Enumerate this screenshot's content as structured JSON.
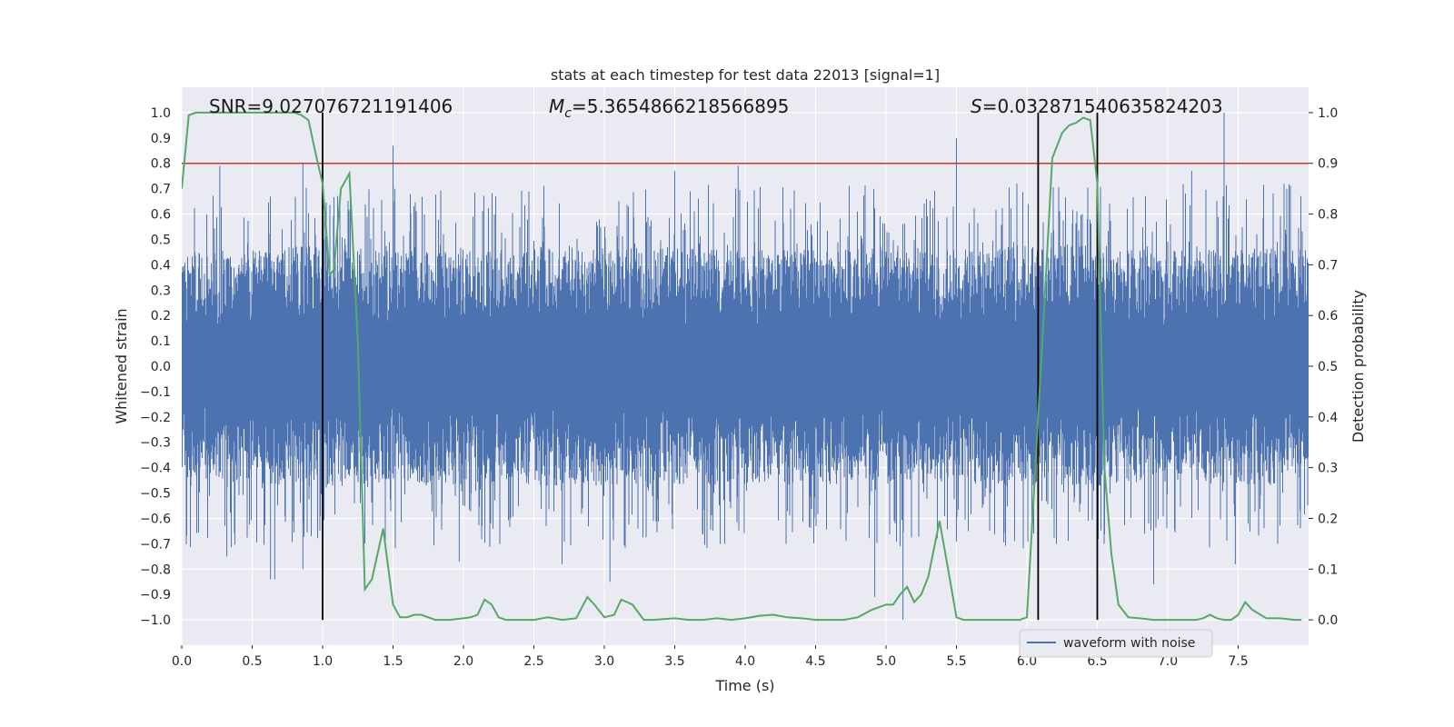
{
  "chart_data": {
    "type": "line",
    "title": "stats at each timestep for test data 22013 [signal=1]",
    "xlabel": "Time (s)",
    "ylabel_left": "Whitened strain",
    "ylabel_right": "Detection probability",
    "xlim": [
      0.0,
      8.0
    ],
    "ylim_left": [
      -1.1,
      1.1
    ],
    "ylim_right": [
      -0.05,
      1.05
    ],
    "grid": true,
    "legend_placement": "lower-right",
    "x_ticks": [
      "0.0",
      "0.5",
      "1.0",
      "1.5",
      "2.0",
      "2.5",
      "3.0",
      "3.5",
      "4.0",
      "4.5",
      "5.0",
      "5.5",
      "6.0",
      "6.5",
      "7.0",
      "7.5"
    ],
    "y_ticks_left": [
      "1.0",
      "0.9",
      "0.8",
      "0.7",
      "0.6",
      "0.5",
      "0.4",
      "0.3",
      "0.2",
      "0.1",
      "0.0",
      "-0.1",
      "-0.2",
      "-0.3",
      "-0.4",
      "-0.5",
      "-0.6",
      "-0.7",
      "-0.8",
      "-0.9",
      "-1.0"
    ],
    "y_ticks_right": [
      "1.0",
      "0.9",
      "0.8",
      "0.7",
      "0.6",
      "0.5",
      "0.4",
      "0.3",
      "0.2",
      "0.1",
      "0.0"
    ],
    "annotations": {
      "snr": "SNR=9.027076721191406",
      "mc_symbol": "M",
      "mc_sub": "c",
      "mc_value": "=5.3654866218566895",
      "s_symbol": "S",
      "s_value": "=0.032871540635824203"
    },
    "threshold_line": {
      "y_left": 0.8,
      "color": "#c0392b"
    },
    "vertical_lines": {
      "x": [
        1.0,
        6.08,
        6.5
      ],
      "y_range_left": [
        -1.0,
        1.0
      ],
      "color": "#000000"
    },
    "series": [
      {
        "name": "waveform with noise",
        "color": "#4c72b0",
        "kind": "dense-noise",
        "envelope_x": [
          0.0,
          0.5,
          1.0,
          1.5,
          2.0,
          2.5,
          3.0,
          3.5,
          4.0,
          4.5,
          5.0,
          5.5,
          6.0,
          6.5,
          7.0,
          7.5,
          8.0
        ],
        "envelope_typical": [
          0.45,
          0.46,
          0.48,
          0.46,
          0.47,
          0.48,
          0.47,
          0.47,
          0.46,
          0.46,
          0.47,
          0.46,
          0.48,
          0.48,
          0.46,
          0.47,
          0.46
        ],
        "peaks": [
          {
            "x": 0.27,
            "y": 0.79
          },
          {
            "x": 0.32,
            "y": -0.75
          },
          {
            "x": 0.63,
            "y": -0.84
          },
          {
            "x": 0.66,
            "y": -0.84
          },
          {
            "x": 0.86,
            "y": 0.8
          },
          {
            "x": 0.86,
            "y": -0.8
          },
          {
            "x": 1.5,
            "y": 0.87
          },
          {
            "x": 1.97,
            "y": -0.77
          },
          {
            "x": 2.7,
            "y": -0.78
          },
          {
            "x": 3.04,
            "y": -0.85
          },
          {
            "x": 3.5,
            "y": 0.77
          },
          {
            "x": 3.95,
            "y": 0.79
          },
          {
            "x": 4.92,
            "y": -0.91
          },
          {
            "x": 5.12,
            "y": -1.0
          },
          {
            "x": 5.5,
            "y": 0.9
          },
          {
            "x": 6.5,
            "y": 0.9
          },
          {
            "x": 6.9,
            "y": -0.86
          },
          {
            "x": 7.4,
            "y": 1.0
          },
          {
            "x": 7.48,
            "y": -0.78
          },
          {
            "x": 7.17,
            "y": 0.77
          }
        ]
      },
      {
        "name": "",
        "color": "#55a868",
        "axis": "right",
        "x": [
          0.0,
          0.05,
          0.1,
          0.15,
          0.2,
          0.3,
          0.4,
          0.5,
          0.6,
          0.7,
          0.8,
          0.85,
          0.9,
          0.95,
          1.0,
          1.05,
          1.08,
          1.13,
          1.19,
          1.25,
          1.3,
          1.35,
          1.43,
          1.5,
          1.55,
          1.6,
          1.65,
          1.7,
          1.75,
          1.8,
          1.9,
          2.0,
          2.05,
          2.1,
          2.15,
          2.2,
          2.25,
          2.3,
          2.4,
          2.5,
          2.6,
          2.7,
          2.8,
          2.88,
          2.93,
          3.0,
          3.07,
          3.12,
          3.2,
          3.28,
          3.35,
          3.5,
          3.6,
          3.7,
          3.8,
          3.9,
          4.0,
          4.1,
          4.2,
          4.3,
          4.4,
          4.5,
          4.6,
          4.7,
          4.8,
          4.9,
          4.95,
          5.0,
          5.05,
          5.1,
          5.15,
          5.2,
          5.25,
          5.3,
          5.38,
          5.45,
          5.5,
          5.55,
          5.6,
          5.7,
          5.8,
          5.9,
          5.95,
          6.0,
          6.05,
          6.12,
          6.18,
          6.25,
          6.3,
          6.35,
          6.4,
          6.45,
          6.5,
          6.55,
          6.6,
          6.65,
          6.72,
          6.8,
          6.9,
          7.0,
          7.1,
          7.2,
          7.25,
          7.3,
          7.35,
          7.4,
          7.45,
          7.5,
          7.55,
          7.6,
          7.7,
          7.8,
          7.9,
          7.95
        ],
        "y": [
          0.85,
          0.995,
          1.0,
          1.0,
          1.0,
          1.0,
          1.0,
          1.0,
          1.0,
          1.0,
          1.0,
          0.995,
          0.985,
          0.92,
          0.86,
          0.68,
          0.69,
          0.85,
          0.88,
          0.55,
          0.06,
          0.08,
          0.18,
          0.03,
          0.005,
          0.005,
          0.01,
          0.01,
          0.005,
          0.0,
          0.0,
          0.003,
          0.005,
          0.01,
          0.04,
          0.03,
          0.005,
          0.0,
          0.0,
          0.0,
          0.005,
          0.0,
          0.003,
          0.045,
          0.03,
          0.005,
          0.01,
          0.04,
          0.03,
          0.0,
          0.0,
          0.003,
          0.0,
          0.0,
          0.003,
          0.0,
          0.003,
          0.008,
          0.01,
          0.005,
          0.003,
          0.0,
          0.0,
          0.0,
          0.005,
          0.02,
          0.025,
          0.03,
          0.03,
          0.05,
          0.065,
          0.035,
          0.05,
          0.085,
          0.195,
          0.085,
          0.005,
          0.0,
          0.0,
          0.0,
          0.0,
          0.0,
          0.0,
          0.005,
          0.25,
          0.6,
          0.91,
          0.96,
          0.975,
          0.98,
          0.99,
          0.985,
          0.86,
          0.3,
          0.13,
          0.03,
          0.005,
          0.003,
          0.0,
          0.0,
          0.0,
          0.0,
          0.003,
          0.01,
          0.003,
          0.0,
          0.0,
          0.01,
          0.035,
          0.02,
          0.003,
          0.003,
          0.0,
          0.0
        ]
      }
    ]
  }
}
